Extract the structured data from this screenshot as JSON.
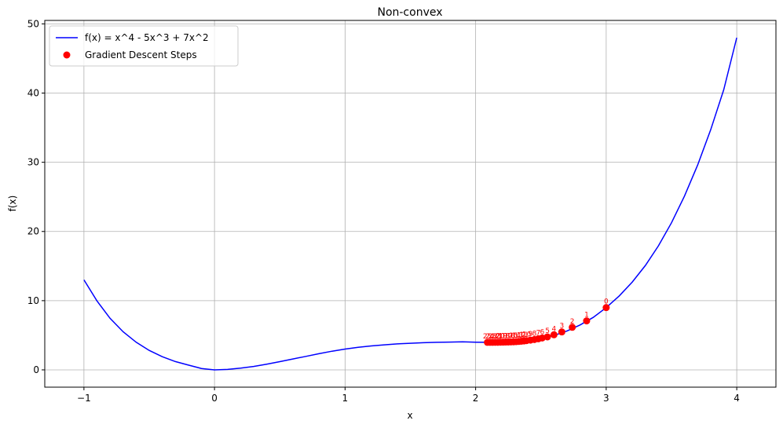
{
  "chart_data": {
    "type": "line",
    "title": "Non-convex",
    "xlabel": "x",
    "ylabel": "f(x)",
    "xlim": [
      -1.3,
      4.3
    ],
    "ylim": [
      -2.5,
      50.5
    ],
    "grid": true,
    "legend_position": "top-left",
    "x_ticks": [
      -1,
      0,
      1,
      2,
      3,
      4
    ],
    "x_tick_labels": [
      "−1",
      "0",
      "1",
      "2",
      "3",
      "4"
    ],
    "y_ticks": [
      0,
      10,
      20,
      30,
      40,
      50
    ],
    "y_tick_labels": [
      "0",
      "10",
      "20",
      "30",
      "40",
      "50"
    ],
    "series": [
      {
        "name": "f(x) = x^4 - 5x^3 + 7x^2",
        "kind": "line",
        "color": "#0000ff",
        "x": [
          -1.0,
          -0.9,
          -0.8,
          -0.7,
          -0.6,
          -0.5,
          -0.4,
          -0.3,
          -0.2,
          -0.1,
          0.0,
          0.1,
          0.2,
          0.3,
          0.4,
          0.5,
          0.6,
          0.7,
          0.8,
          0.9,
          1.0,
          1.1,
          1.2,
          1.3,
          1.4,
          1.5,
          1.6,
          1.7,
          1.8,
          1.9,
          2.0,
          2.1,
          2.2,
          2.3,
          2.4,
          2.5,
          2.6,
          2.7,
          2.8,
          2.9,
          3.0,
          3.1,
          3.2,
          3.3,
          3.4,
          3.5,
          3.6,
          3.7,
          3.8,
          3.9,
          4.0
        ],
        "y": [
          13.0,
          9.96,
          7.45,
          5.5,
          3.99,
          2.81,
          1.9,
          1.2,
          0.69,
          0.2,
          0.0,
          0.07,
          0.25,
          0.5,
          0.83,
          1.19,
          1.57,
          1.95,
          2.33,
          2.7,
          3.0,
          3.26,
          3.46,
          3.62,
          3.75,
          3.84,
          3.92,
          3.98,
          4.02,
          4.05,
          4.0,
          3.98,
          3.98,
          4.04,
          4.2,
          4.5,
          4.97,
          5.63,
          6.49,
          7.58,
          9.0,
          10.69,
          12.7,
          15.09,
          17.93,
          21.25,
          25.12,
          29.6,
          34.69,
          40.47,
          48.0
        ]
      },
      {
        "name": "Gradient Descent Steps",
        "kind": "scatter",
        "color": "#ff0000",
        "x": [
          3.0,
          2.85,
          2.74,
          2.66,
          2.6,
          2.55,
          2.51,
          2.48,
          2.45,
          2.42,
          2.39,
          2.37,
          2.35,
          2.33,
          2.31,
          2.29,
          2.27,
          2.25,
          2.23,
          2.21,
          2.19,
          2.17,
          2.15,
          2.13,
          2.11,
          2.09
        ],
        "y": [
          9.0,
          7.08,
          6.15,
          5.48,
          5.07,
          4.77,
          4.61,
          4.49,
          4.38,
          4.3,
          4.23,
          4.18,
          4.14,
          4.11,
          4.08,
          4.06,
          4.04,
          4.03,
          4.02,
          4.01,
          4.0,
          3.99,
          3.99,
          3.98,
          3.98,
          3.98
        ],
        "labels": [
          "0",
          "1",
          "2",
          "3",
          "4",
          "5",
          "6",
          "7",
          "8",
          "9",
          "10",
          "11",
          "12",
          "13",
          "14",
          "15",
          "16",
          "17",
          "18",
          "19",
          "20",
          "21",
          "22",
          "23",
          "24",
          "25"
        ]
      }
    ]
  }
}
